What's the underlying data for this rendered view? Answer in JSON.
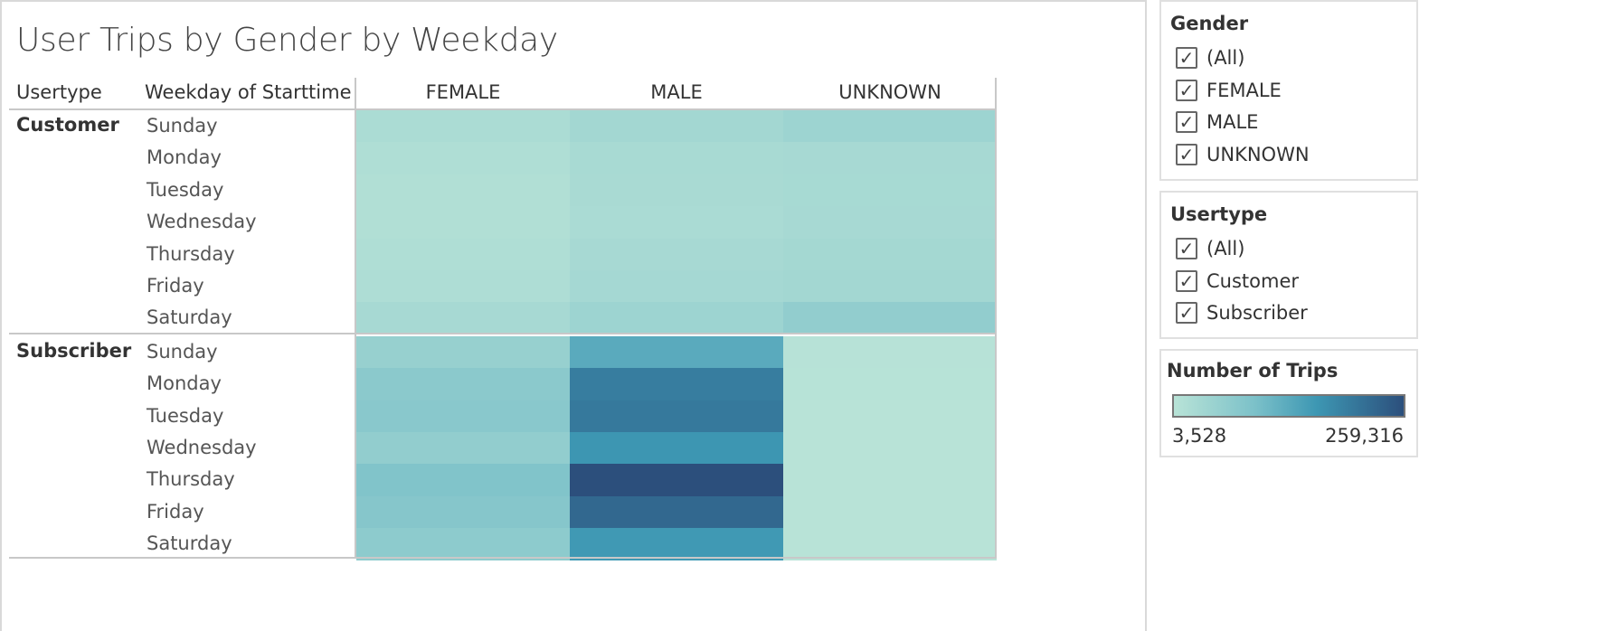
{
  "chart_data": {
    "type": "heatmap",
    "title": "User Trips by Gender by Weekday",
    "row_headers": [
      "Usertype",
      "Weekday of Starttime"
    ],
    "columns": [
      "FEMALE",
      "MALE",
      "UNKNOWN"
    ],
    "groups": [
      {
        "name": "Customer",
        "rows": [
          {
            "day": "Sunday",
            "values": [
              22000,
              34000,
              42000
            ]
          },
          {
            "day": "Monday",
            "values": [
              16000,
              26000,
              28000
            ]
          },
          {
            "day": "Tuesday",
            "values": [
              14000,
              25000,
              27000
            ]
          },
          {
            "day": "Wednesday",
            "values": [
              13000,
              24000,
              28000
            ]
          },
          {
            "day": "Thursday",
            "values": [
              17000,
              28000,
              32000
            ]
          },
          {
            "day": "Friday",
            "values": [
              18000,
              30000,
              33000
            ]
          },
          {
            "day": "Saturday",
            "values": [
              28000,
              42000,
              58000
            ]
          }
        ]
      },
      {
        "name": "Subscriber",
        "rows": [
          {
            "day": "Sunday",
            "values": [
              50000,
              135000,
              5000
            ]
          },
          {
            "day": "Monday",
            "values": [
              68000,
              205000,
              4500
            ]
          },
          {
            "day": "Tuesday",
            "values": [
              70000,
              210000,
              4200
            ]
          },
          {
            "day": "Wednesday",
            "values": [
              58000,
              175000,
              4000
            ]
          },
          {
            "day": "Thursday",
            "values": [
              82000,
              259316,
              3800
            ]
          },
          {
            "day": "Friday",
            "values": [
              75000,
              230000,
              3528
            ]
          },
          {
            "day": "Saturday",
            "values": [
              64000,
              170000,
              4200
            ]
          }
        ]
      }
    ],
    "color_min": 3528,
    "color_max": 259316,
    "color_scale": [
      "#b8e3d7",
      "#7cc1c9",
      "#3d97b3",
      "#2c4f7c"
    ]
  },
  "filters": {
    "gender": {
      "title": "Gender",
      "items": [
        "(All)",
        "FEMALE",
        "MALE",
        "UNKNOWN"
      ]
    },
    "usertype": {
      "title": "Usertype",
      "items": [
        "(All)",
        "Customer",
        "Subscriber"
      ]
    }
  },
  "legend": {
    "title": "Number of Trips",
    "min_label": "3,528",
    "max_label": "259,316"
  },
  "check_glyph": "✓"
}
